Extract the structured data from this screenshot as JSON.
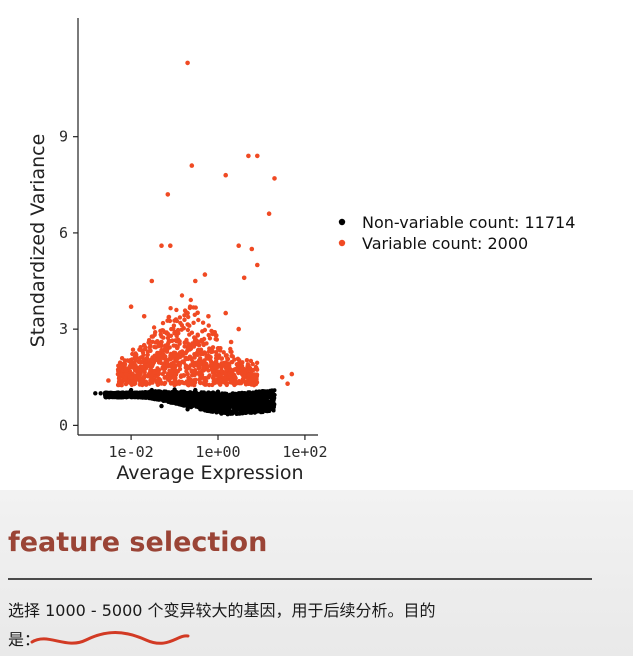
{
  "chart_data": {
    "type": "scatter",
    "xlabel": "Average Expression",
    "ylabel": "Standardized Variance",
    "x_scale": "log10",
    "xlim": [
      0.0006,
      200
    ],
    "ylim": [
      -0.3,
      12.7
    ],
    "x_ticks": [
      {
        "value": 0.01,
        "label": "1e-02"
      },
      {
        "value": 1,
        "label": "1e+00"
      },
      {
        "value": 100,
        "label": "1e+02"
      }
    ],
    "y_ticks": [
      {
        "value": 0,
        "label": "0"
      },
      {
        "value": 3,
        "label": "3"
      },
      {
        "value": 6,
        "label": "6"
      },
      {
        "value": 9,
        "label": "9"
      }
    ],
    "grid": false,
    "legend_position": "right",
    "series": [
      {
        "name": "Non-variable count: 11714",
        "color": "#000000",
        "description_points": "dense band",
        "points": [
          [
            0.0015,
            1.0
          ],
          [
            0.002,
            1.0
          ],
          [
            0.003,
            0.98
          ],
          [
            0.005,
            0.95
          ],
          [
            0.008,
            0.93
          ],
          [
            0.012,
            0.9
          ],
          [
            0.02,
            0.87
          ],
          [
            0.03,
            0.85
          ],
          [
            0.05,
            0.82
          ],
          [
            0.08,
            0.78
          ],
          [
            0.12,
            0.75
          ],
          [
            0.2,
            0.72
          ],
          [
            0.3,
            0.68
          ],
          [
            0.5,
            0.65
          ],
          [
            0.8,
            0.6
          ],
          [
            1.2,
            0.58
          ],
          [
            2,
            0.6
          ],
          [
            3,
            0.65
          ],
          [
            5,
            0.72
          ],
          [
            8,
            0.8
          ],
          [
            12,
            0.9
          ],
          [
            20,
            0.95
          ],
          [
            0.01,
            1.1
          ],
          [
            0.03,
            1.1
          ],
          [
            0.1,
            1.12
          ],
          [
            0.3,
            1.1
          ],
          [
            1,
            1.05
          ],
          [
            3,
            1.0
          ],
          [
            10,
            1.0
          ],
          [
            0.05,
            0.6
          ],
          [
            0.2,
            0.5
          ],
          [
            0.6,
            0.45
          ],
          [
            1.5,
            0.42
          ],
          [
            4,
            0.5
          ],
          [
            0.1,
            0.95
          ],
          [
            0.5,
            0.9
          ]
        ]
      },
      {
        "name": "Variable count: 2000",
        "color": "#f04a23",
        "points": [
          [
            0.2,
            11.3
          ],
          [
            0.07,
            7.2
          ],
          [
            0.25,
            8.1
          ],
          [
            5,
            8.4
          ],
          [
            8,
            8.4
          ],
          [
            20,
            7.7
          ],
          [
            1.5,
            7.8
          ],
          [
            15,
            6.6
          ],
          [
            0.05,
            5.6
          ],
          [
            0.08,
            5.6
          ],
          [
            3,
            5.6
          ],
          [
            6,
            5.5
          ],
          [
            4,
            4.6
          ],
          [
            0.5,
            4.7
          ],
          [
            0.3,
            4.5
          ],
          [
            8,
            5.0
          ],
          [
            0.03,
            4.5
          ],
          [
            0.01,
            3.7
          ],
          [
            0.02,
            3.4
          ],
          [
            0.2,
            3.5
          ],
          [
            0.6,
            3.4
          ],
          [
            1.5,
            3.5
          ],
          [
            3,
            3.0
          ],
          [
            2,
            2.6
          ],
          [
            1,
            2.4
          ],
          [
            0.1,
            2.9
          ],
          [
            0.05,
            2.6
          ],
          [
            0.3,
            2.7
          ],
          [
            0.02,
            2.5
          ],
          [
            0.15,
            2.3
          ],
          [
            0.08,
            2.1
          ],
          [
            0.4,
            2.0
          ],
          [
            0.7,
            1.9
          ],
          [
            1.2,
            1.8
          ],
          [
            0.01,
            1.9
          ],
          [
            0.005,
            1.6
          ],
          [
            0.003,
            1.4
          ],
          [
            0.02,
            1.5
          ],
          [
            0.2,
            1.6
          ],
          [
            0.6,
            1.5
          ],
          [
            2,
            1.4
          ],
          [
            30,
            1.5
          ],
          [
            50,
            1.6
          ],
          [
            40,
            1.3
          ]
        ]
      }
    ]
  },
  "slide": {
    "title": "feature selection",
    "body_line1": "选择 1000 - 5000 个变异较大的基因，用于后续分析。目的",
    "body_line2": "是："
  }
}
